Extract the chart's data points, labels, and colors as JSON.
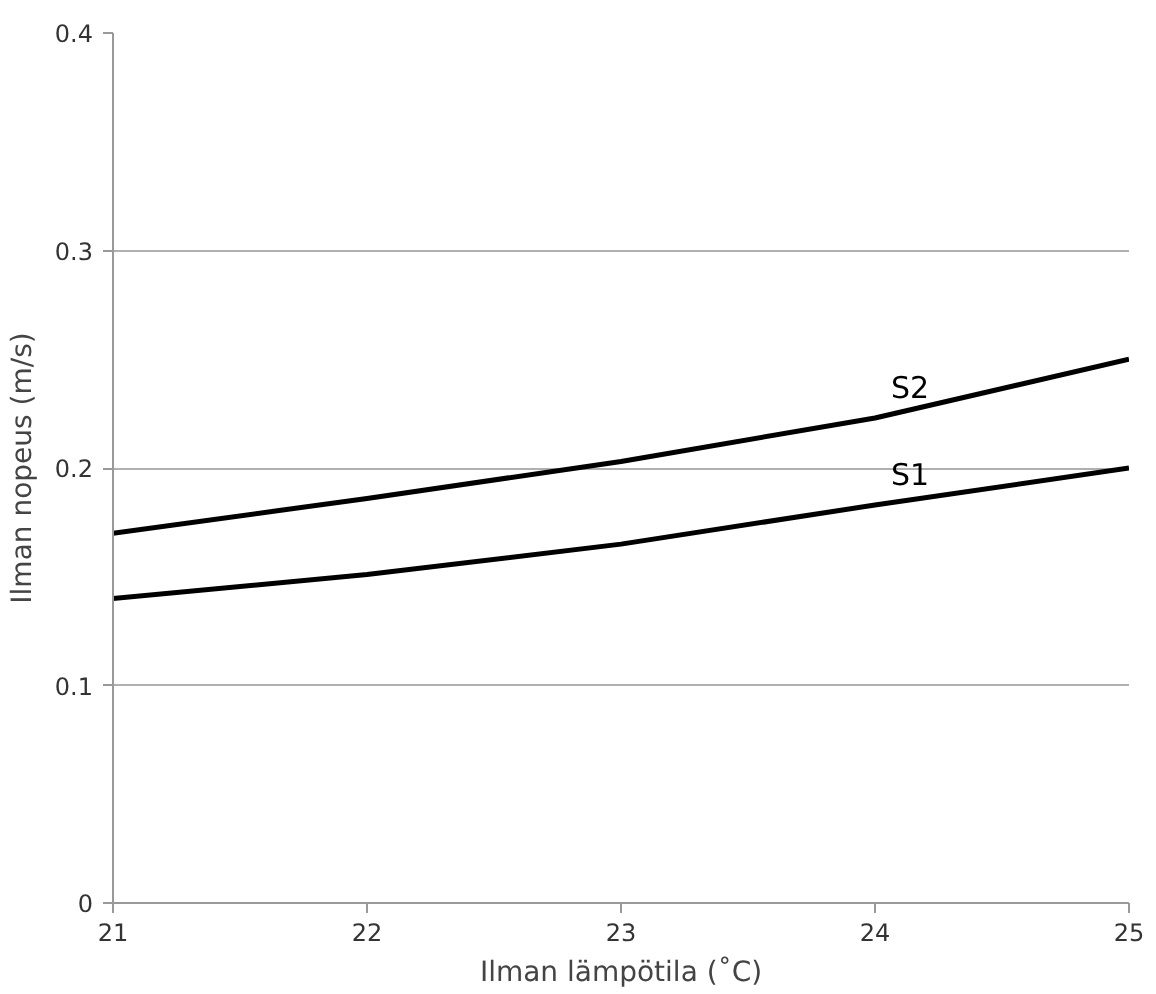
{
  "chart_data": {
    "type": "line",
    "xlabel": "Ilman lämpötila (˚C)",
    "ylabel": "Ilman nopeus (m/s)",
    "x": [
      21,
      22,
      23,
      24,
      25
    ],
    "series": [
      {
        "name": "S2",
        "color": "#000000",
        "values": [
          0.17,
          0.186,
          0.203,
          0.223,
          0.25
        ]
      },
      {
        "name": "S1",
        "color": "#000000",
        "values": [
          0.14,
          0.151,
          0.165,
          0.183,
          0.2
        ]
      }
    ],
    "xlim": [
      21,
      25
    ],
    "ylim": [
      0,
      0.4
    ],
    "xticks": [
      21,
      22,
      23,
      24,
      25
    ],
    "yticks": [
      {
        "value": 0,
        "label": "0"
      },
      0.1,
      0.2,
      0.3,
      0.4
    ],
    "grid": "y",
    "marker": "none",
    "line_style": "solid"
  }
}
